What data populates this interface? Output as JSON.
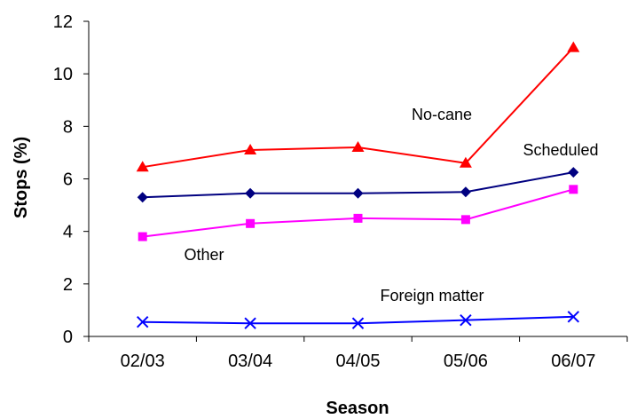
{
  "chart_data": {
    "type": "line",
    "title": "",
    "xlabel": "Season",
    "ylabel": "Stops (%)",
    "categories": [
      "02/03",
      "03/04",
      "04/05",
      "05/06",
      "06/07"
    ],
    "ylim": [
      0,
      12
    ],
    "yticks": [
      0,
      2,
      4,
      6,
      8,
      10,
      12
    ],
    "grid": false,
    "legend": "none",
    "series": [
      {
        "name": "No-cane",
        "color": "#ff0000",
        "marker": "triangle",
        "values": [
          6.45,
          7.1,
          7.2,
          6.6,
          11.0
        ]
      },
      {
        "name": "Scheduled",
        "color": "#000080",
        "marker": "diamond",
        "values": [
          5.3,
          5.45,
          5.45,
          5.5,
          6.25
        ]
      },
      {
        "name": "Other",
        "color": "#ff00ff",
        "marker": "square",
        "values": [
          3.8,
          4.3,
          4.5,
          4.45,
          5.6
        ]
      },
      {
        "name": "Foreign matter",
        "color": "#0000ff",
        "marker": "x",
        "values": [
          0.55,
          0.5,
          0.5,
          0.62,
          0.75
        ]
      }
    ]
  }
}
